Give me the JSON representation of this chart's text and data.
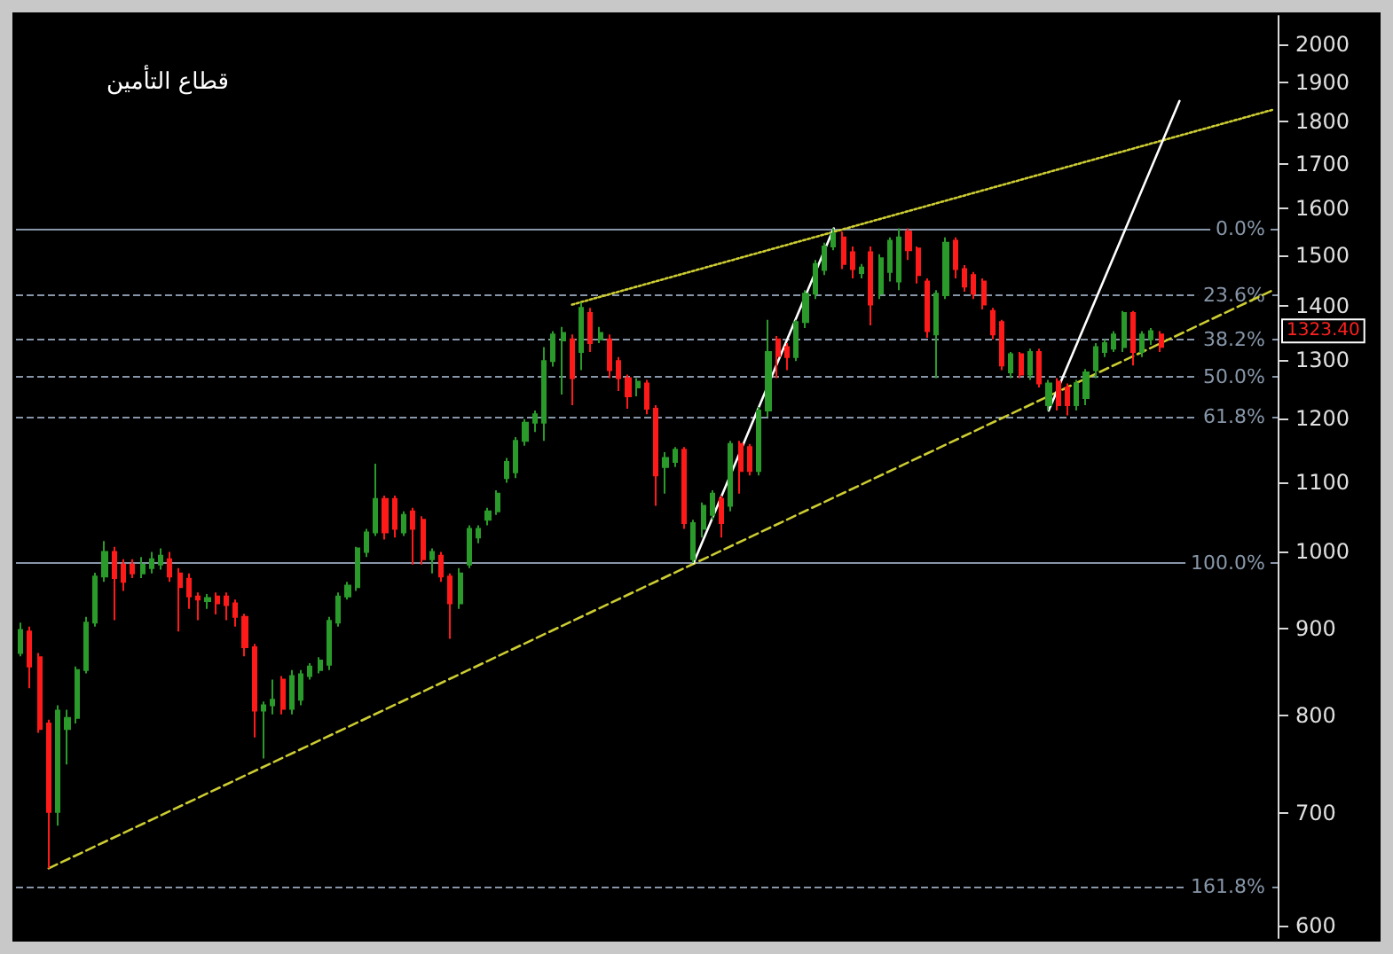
{
  "chart_data": {
    "type": "candlestick",
    "title": "قطاع التأمين",
    "log": "y",
    "tick_labels": "y",
    "ylim": [
      590,
      2080
    ],
    "yticks": [
      600,
      700,
      800,
      900,
      1000,
      1100,
      1200,
      1300,
      1400,
      1500,
      1600,
      1700,
      1800,
      1900,
      2000
    ],
    "categories": [
      null,
      null,
      null,
      null,
      null,
      null,
      null,
      null,
      null,
      null,
      null,
      null,
      null,
      null,
      null,
      null,
      null,
      null,
      null,
      null,
      null,
      null,
      null,
      null,
      null,
      null,
      null,
      null,
      null,
      null,
      null,
      null,
      null,
      null,
      null,
      null,
      null,
      null,
      null,
      null,
      null,
      null,
      null,
      null,
      null,
      null,
      null,
      null,
      null,
      null,
      null,
      null,
      null,
      null,
      null,
      null,
      null,
      null,
      null,
      null,
      null,
      null,
      null,
      null,
      null,
      null,
      null,
      null,
      null,
      null,
      null,
      null,
      null,
      null,
      null,
      null,
      null,
      null,
      null,
      null,
      null,
      null,
      null,
      null,
      null,
      null,
      null,
      null,
      null,
      null,
      null,
      null,
      null,
      null,
      null,
      null,
      null,
      null,
      null,
      null,
      null,
      null,
      null,
      null,
      null,
      null,
      null,
      null,
      null,
      null,
      null,
      null,
      null,
      null,
      null,
      null,
      null,
      null,
      null,
      null,
      null,
      null,
      null,
      null,
      null,
      null,
      null,
      null,
      null,
      null,
      null,
      null,
      null,
      null,
      null
    ],
    "ref_lines": [
      {
        "axis": "y",
        "value": 1555,
        "color": "#8796a8",
        "line_style": "solid"
      },
      {
        "axis": "y",
        "value": 1420,
        "color": "#8796a8",
        "line_style": "dashed"
      },
      {
        "axis": "y",
        "value": 1337,
        "color": "#8796a8",
        "line_style": "dashed"
      },
      {
        "axis": "y",
        "value": 1270,
        "color": "#8796a8",
        "line_style": "dashed"
      },
      {
        "axis": "y",
        "value": 1203,
        "color": "#8796a8",
        "line_style": "dashed"
      },
      {
        "axis": "y",
        "value": 985,
        "color": "#8796a8",
        "line_style": "solid"
      },
      {
        "axis": "y",
        "value": 633,
        "color": "#8796a8",
        "line_style": "dashed"
      }
    ],
    "annotations": [
      "1323.40",
      {
        "text": "0.0%",
        "y": 1555
      },
      {
        "text": "23.6%",
        "y": 1420
      },
      {
        "text": "38.2%",
        "y": 1337
      },
      {
        "text": "50.0%",
        "y": 1270
      },
      {
        "text": "61.8%",
        "y": 1203
      },
      {
        "text": "100.0%",
        "y": 985
      },
      {
        "text": "161.8%",
        "y": 633
      }
    ],
    "series": [
      {
        "type": "line",
        "color": "#cccc33",
        "line_style": "dashed",
        "values": [
          null,
          null,
          null,
          649,
          null,
          null,
          null,
          null,
          null,
          null,
          null,
          null,
          null,
          null,
          null,
          null,
          null,
          null,
          null,
          null,
          null,
          null,
          null,
          null,
          null,
          null,
          null,
          null,
          null,
          null,
          null,
          null,
          null,
          null,
          null,
          null,
          null,
          null,
          null,
          null,
          null,
          null,
          null,
          null,
          null,
          null,
          null,
          null,
          null,
          null,
          null,
          null,
          null,
          null,
          null,
          null,
          null,
          null,
          null,
          null,
          null,
          null,
          null,
          null,
          null,
          null,
          null,
          null,
          null,
          null,
          null,
          null,
          null,
          null,
          null,
          null,
          null,
          null,
          null,
          null,
          null,
          null,
          null,
          null,
          null,
          null,
          null,
          null,
          null,
          null,
          null,
          null,
          null,
          null,
          null,
          null,
          null,
          null,
          null,
          null,
          null,
          null,
          null,
          null,
          null,
          null,
          null,
          null,
          null,
          null,
          null,
          null,
          null,
          null,
          null,
          null,
          null,
          null,
          null,
          null,
          null,
          null,
          null,
          null,
          null,
          null,
          null,
          null,
          null,
          null,
          null,
          null,
          null,
          null,
          1430
        ]
      },
      {
        "type": "line",
        "color": "#cccc33",
        "line_style": "dotted",
        "values": [
          null,
          null,
          null,
          null,
          null,
          null,
          null,
          null,
          null,
          null,
          null,
          null,
          null,
          null,
          null,
          null,
          null,
          null,
          null,
          null,
          null,
          null,
          null,
          null,
          null,
          null,
          null,
          null,
          null,
          null,
          null,
          null,
          null,
          null,
          null,
          null,
          null,
          null,
          null,
          null,
          null,
          null,
          null,
          null,
          null,
          null,
          null,
          null,
          null,
          null,
          null,
          null,
          null,
          null,
          null,
          null,
          null,
          null,
          null,
          1402,
          null,
          null,
          null,
          null,
          null,
          null,
          null,
          null,
          null,
          null,
          null,
          null,
          null,
          null,
          null,
          null,
          null,
          null,
          null,
          null,
          null,
          null,
          null,
          null,
          null,
          null,
          null,
          null,
          null,
          null,
          null,
          null,
          null,
          null,
          null,
          null,
          null,
          null,
          null,
          null,
          null,
          null,
          null,
          null,
          null,
          null,
          null,
          null,
          null,
          null,
          null,
          null,
          null,
          null,
          null,
          null,
          null,
          null,
          null,
          null,
          null,
          null,
          null,
          null,
          null,
          null,
          null,
          null,
          null,
          null,
          null,
          null,
          null,
          null,
          1830
        ]
      },
      {
        "type": "line",
        "color": "#ffffff",
        "line_style": "solid",
        "values": [
          null,
          null,
          null,
          null,
          null,
          null,
          null,
          null,
          null,
          null,
          null,
          null,
          null,
          null,
          null,
          null,
          null,
          null,
          null,
          null,
          null,
          null,
          null,
          null,
          null,
          null,
          null,
          null,
          null,
          null,
          null,
          null,
          null,
          null,
          null,
          null,
          null,
          null,
          null,
          null,
          null,
          null,
          null,
          null,
          null,
          null,
          null,
          null,
          null,
          null,
          null,
          null,
          null,
          null,
          null,
          null,
          null,
          null,
          null,
          null,
          null,
          null,
          null,
          null,
          null,
          null,
          null,
          null,
          null,
          null,
          null,
          null,
          985,
          null,
          null,
          null,
          null,
          null,
          null,
          null,
          null,
          null,
          null,
          null,
          null,
          null,
          null,
          1556,
          null,
          null,
          null,
          null,
          null,
          null,
          null,
          null,
          null,
          null,
          null,
          null,
          null,
          null,
          null,
          null,
          null,
          null,
          null,
          null,
          null,
          null,
          null,
          null,
          null,
          null,
          null,
          null,
          null,
          null,
          null,
          null,
          null,
          null,
          null,
          null,
          null,
          null,
          null,
          null,
          null,
          null,
          null,
          null,
          null,
          null,
          null
        ]
      },
      {
        "type": "line",
        "color": "#ffffff",
        "line_style": "solid",
        "values": [
          null,
          null,
          null,
          null,
          null,
          null,
          null,
          null,
          null,
          null,
          null,
          null,
          null,
          null,
          null,
          null,
          null,
          null,
          null,
          null,
          null,
          null,
          null,
          null,
          null,
          null,
          null,
          null,
          null,
          null,
          null,
          null,
          null,
          null,
          null,
          null,
          null,
          null,
          null,
          null,
          null,
          null,
          null,
          null,
          null,
          null,
          null,
          null,
          null,
          null,
          null,
          null,
          null,
          null,
          null,
          null,
          null,
          null,
          null,
          null,
          null,
          null,
          null,
          null,
          null,
          null,
          null,
          null,
          null,
          null,
          null,
          null,
          null,
          null,
          null,
          null,
          null,
          null,
          null,
          null,
          null,
          null,
          null,
          null,
          null,
          null,
          null,
          null,
          null,
          null,
          null,
          null,
          null,
          null,
          null,
          null,
          null,
          null,
          null,
          null,
          null,
          null,
          null,
          null,
          null,
          null,
          null,
          null,
          null,
          null,
          1213,
          null,
          null,
          null,
          null,
          null,
          null,
          null,
          null,
          null,
          null,
          null,
          null,
          null,
          1852,
          null,
          null,
          null,
          null,
          null,
          null,
          null,
          null,
          null,
          null
        ]
      },
      {
        "colors": [
          "#2a9a2a",
          "#ff1a1a",
          "#ff1a1a",
          "#ff1a1a",
          "#2a9a2a",
          "#2a9a2a",
          "#2a9a2a",
          "#2a9a2a",
          "#2a9a2a",
          "#2a9a2a",
          "#ff1a1a",
          "#ff1a1a",
          "#ff1a1a",
          "#2a9a2a",
          "#2a9a2a",
          "#2a9a2a",
          "#ff1a1a",
          "#ff1a1a",
          "#ff1a1a",
          "#ff1a1a",
          "#2a9a2a",
          "#ff1a1a",
          "#ff1a1a",
          "#ff1a1a",
          "#ff1a1a",
          "#ff1a1a",
          "#2a9a2a",
          "#2a9a2a",
          "#ff1a1a",
          "#2a9a2a",
          "#2a9a2a",
          "#2a9a2a",
          "#2a9a2a",
          "#2a9a2a",
          "#2a9a2a",
          "#2a9a2a",
          "#2a9a2a",
          "#2a9a2a",
          "#2a9a2a",
          "#ff1a1a",
          "#ff1a1a",
          "#2a9a2a",
          "#ff1a1a",
          "#ff1a1a",
          "#2a9a2a",
          "#ff1a1a",
          "#ff1a1a",
          "#2a9a2a",
          "#2a9a2a",
          "#2a9a2a",
          "#2a9a2a",
          "#2a9a2a",
          "#2a9a2a",
          "#2a9a2a",
          "#2a9a2a",
          "#2a9a2a",
          "#2a9a2a",
          "#2a9a2a",
          "#2a9a2a",
          "#ff1a1a",
          "#2a9a2a",
          "#ff1a1a",
          "#2a9a2a",
          "#ff1a1a",
          "#ff1a1a",
          "#ff1a1a",
          "#2a9a2a",
          "#ff1a1a",
          "#ff1a1a",
          "#2a9a2a",
          "#2a9a2a",
          "#ff1a1a",
          "#2a9a2a",
          "#2a9a2a",
          "#2a9a2a",
          "#ff1a1a",
          "#2a9a2a",
          "#ff1a1a",
          "#ff1a1a",
          "#2a9a2a",
          "#2a9a2a",
          "#ff1a1a",
          "#ff1a1a",
          "#2a9a2a",
          "#2a9a2a",
          "#2a9a2a",
          "#2a9a2a",
          "#2a9a2a",
          "#ff1a1a",
          "#ff1a1a",
          "#2a9a2a",
          "#ff1a1a",
          "#2a9a2a",
          "#2a9a2a",
          "#2a9a2a",
          "#ff1a1a",
          "#ff1a1a",
          "#ff1a1a",
          "#2a9a2a",
          "#2a9a2a",
          "#ff1a1a",
          "#ff1a1a",
          "#ff1a1a",
          "#ff1a1a",
          "#ff1a1a",
          "#ff1a1a",
          "#2a9a2a",
          "#ff1a1a",
          "#2a9a2a",
          "#ff1a1a",
          "#2a9a2a",
          "#ff1a1a",
          "#ff1a1a",
          "#2a9a2a",
          "#2a9a2a",
          "#2a9a2a",
          "#2a9a2a",
          "#2a9a2a",
          "#2a9a2a",
          "#ff1a1a",
          "#2a9a2a",
          "#2a9a2a",
          "#ff1a1a",
          null,
          null,
          null,
          null,
          null,
          null,
          null,
          null,
          null,
          null,
          null,
          null
        ],
        "ohlc": [
          [
            871,
            908,
            867,
            899
          ],
          [
            897,
            903,
            830,
            855
          ],
          [
            866,
            871,
            781,
            785
          ],
          [
            791,
            795,
            649,
            701
          ],
          [
            701,
            811,
            688,
            805
          ],
          [
            785,
            806,
            748,
            797
          ],
          [
            797,
            855,
            791,
            851
          ],
          [
            851,
            915,
            847,
            908
          ],
          [
            908,
            972,
            903,
            967
          ],
          [
            967,
            1015,
            960,
            1000
          ],
          [
            1000,
            1007,
            911,
            965
          ],
          [
            983,
            990,
            948,
            960
          ],
          [
            983,
            990,
            965,
            971
          ],
          [
            971,
            993,
            965,
            983
          ],
          [
            978,
            1000,
            971,
            990
          ],
          [
            983,
            1005,
            976,
            995
          ],
          [
            990,
            1000,
            960,
            967
          ],
          [
            971,
            978,
            897,
            953
          ],
          [
            964,
            971,
            925,
            941
          ],
          [
            941,
            946,
            911,
            937
          ],
          [
            935,
            944,
            925,
            939
          ],
          [
            941,
            946,
            918,
            932
          ],
          [
            941,
            946,
            911,
            930
          ],
          [
            932,
            937,
            903,
            915
          ],
          [
            915,
            919,
            867,
            878
          ],
          [
            878,
            882,
            776,
            805
          ],
          [
            805,
            815,
            754,
            811
          ],
          [
            811,
            840,
            801,
            817
          ],
          [
            840,
            844,
            801,
            807
          ],
          [
            807,
            851,
            801,
            844
          ],
          [
            817,
            851,
            811,
            846
          ],
          [
            844,
            859,
            840,
            855
          ],
          [
            851,
            866,
            847,
            862
          ],
          [
            857,
            915,
            851,
            910
          ],
          [
            908,
            946,
            903,
            941
          ],
          [
            941,
            960,
            937,
            955
          ],
          [
            953,
            1007,
            948,
            1005
          ],
          [
            1000,
            1032,
            993,
            1027
          ],
          [
            1027,
            1128,
            1022,
            1075
          ],
          [
            1075,
            1080,
            1017,
            1027
          ],
          [
            1075,
            1080,
            1020,
            1032
          ],
          [
            1027,
            1057,
            1022,
            1052
          ],
          [
            1057,
            1062,
            983,
            1032
          ],
          [
            1045,
            1050,
            983,
            990
          ],
          [
            990,
            1005,
            971,
            1000
          ],
          [
            995,
            1000,
            960,
            967
          ],
          [
            967,
            971,
            888,
            932
          ],
          [
            932,
            978,
            925,
            971
          ],
          [
            983,
            1037,
            978,
            1032
          ],
          [
            1020,
            1037,
            1012,
            1032
          ],
          [
            1045,
            1062,
            1037,
            1057
          ],
          [
            1057,
            1088,
            1052,
            1083
          ],
          [
            1106,
            1137,
            1099,
            1131
          ],
          [
            1115,
            1170,
            1106,
            1164
          ],
          [
            1164,
            1199,
            1156,
            1193
          ],
          [
            1193,
            1213,
            1178,
            1207
          ],
          [
            1193,
            1323,
            1164,
            1298
          ],
          [
            1298,
            1352,
            1288,
            1346
          ],
          [
            1335,
            1360,
            1240,
            1349
          ],
          [
            1337,
            1346,
            1222,
            1268
          ],
          [
            1314,
            1406,
            1282,
            1396
          ],
          [
            1386,
            1396,
            1314,
            1330
          ],
          [
            1337,
            1360,
            1330,
            1349
          ],
          [
            1337,
            1346,
            1268,
            1282
          ],
          [
            1298,
            1305,
            1246,
            1268
          ],
          [
            1268,
            1274,
            1216,
            1237
          ],
          [
            1252,
            1268,
            1237,
            1262
          ],
          [
            1259,
            1265,
            1207,
            1216
          ],
          [
            1216,
            1222,
            1065,
            1110
          ],
          [
            1123,
            1146,
            1083,
            1137
          ],
          [
            1131,
            1154,
            1123,
            1150
          ],
          [
            1150,
            1154,
            1032,
            1040
          ],
          [
            990,
            1045,
            985,
            1040
          ],
          [
            1032,
            1070,
            1020,
            1065
          ],
          [
            1052,
            1088,
            1045,
            1083
          ],
          [
            1075,
            1080,
            1020,
            1040
          ],
          [
            1065,
            1164,
            1057,
            1159
          ],
          [
            1159,
            1164,
            1083,
            1117
          ],
          [
            1154,
            1159,
            1110,
            1117
          ],
          [
            1117,
            1219,
            1110,
            1213
          ],
          [
            1213,
            1373,
            1203,
            1314
          ],
          [
            1337,
            1343,
            1268,
            1307
          ],
          [
            1323,
            1330,
            1282,
            1305
          ],
          [
            1305,
            1373,
            1298,
            1369
          ],
          [
            1369,
            1430,
            1358,
            1423
          ],
          [
            1423,
            1490,
            1413,
            1482
          ],
          [
            1470,
            1526,
            1460,
            1518
          ],
          [
            1518,
            1556,
            1510,
            1545
          ],
          [
            1537,
            1549,
            1472,
            1482
          ],
          [
            1506,
            1518,
            1453,
            1472
          ],
          [
            1464,
            1482,
            1453,
            1475
          ],
          [
            1506,
            1518,
            1363,
            1402
          ],
          [
            1423,
            1502,
            1413,
            1494
          ],
          [
            1466,
            1537,
            1447,
            1530
          ],
          [
            1447,
            1556,
            1430,
            1537
          ],
          [
            1549,
            1556,
            1490,
            1510
          ],
          [
            1514,
            1518,
            1443,
            1460
          ],
          [
            1447,
            1453,
            1340,
            1352
          ],
          [
            1346,
            1430,
            1268,
            1423
          ],
          [
            1420,
            1537,
            1413,
            1526
          ],
          [
            1530,
            1537,
            1453,
            1472
          ],
          [
            1472,
            1480,
            1427,
            1437
          ],
          [
            1460,
            1466,
            1413,
            1423
          ],
          [
            1447,
            1453,
            1393,
            1402
          ],
          [
            1390,
            1396,
            1337,
            1346
          ],
          [
            1369,
            1373,
            1282,
            1290
          ],
          [
            1278,
            1314,
            1268,
            1310
          ],
          [
            1310,
            1314,
            1268,
            1274
          ],
          [
            1274,
            1320,
            1265,
            1314
          ],
          [
            1314,
            1320,
            1252,
            1259
          ],
          [
            1222,
            1265,
            1213,
            1259
          ],
          [
            1262,
            1268,
            1213,
            1222
          ],
          [
            1252,
            1259,
            1205,
            1222
          ],
          [
            1222,
            1265,
            1213,
            1259
          ],
          [
            1234,
            1284,
            1222,
            1278
          ],
          [
            1282,
            1330,
            1268,
            1323
          ],
          [
            1314,
            1337,
            1305,
            1330
          ],
          [
            1320,
            1352,
            1314,
            1346
          ],
          [
            1323,
            1390,
            1314,
            1386
          ],
          [
            1386,
            1390,
            1290,
            1314
          ],
          [
            1314,
            1352,
            1305,
            1346
          ],
          [
            1337,
            1358,
            1327,
            1352
          ],
          [
            1346,
            1352,
            1314,
            1323.4
          ],
          null,
          null,
          null,
          null,
          null,
          null,
          null,
          null,
          null,
          null,
          null,
          null
        ]
      }
    ]
  }
}
